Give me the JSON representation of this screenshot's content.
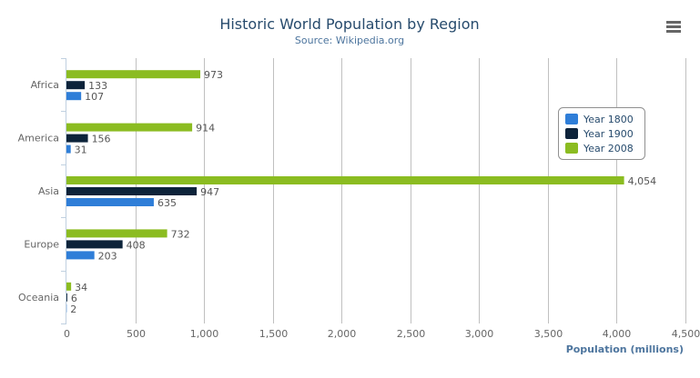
{
  "chart_data": {
    "type": "bar",
    "orientation": "horizontal",
    "title": "Historic World Population by Region",
    "subtitle": "Source: Wikipedia.org",
    "xlabel": "Population (millions)",
    "ylabel": "",
    "categories": [
      "Africa",
      "America",
      "Asia",
      "Europe",
      "Oceania"
    ],
    "series": [
      {
        "name": "Year 1800",
        "color": "#2f7ed8",
        "values": [
          107,
          31,
          635,
          203,
          2
        ]
      },
      {
        "name": "Year 1900",
        "color": "#0d233a",
        "values": [
          133,
          156,
          947,
          408,
          6
        ]
      },
      {
        "name": "Year 2008",
        "color": "#8bbc21",
        "values": [
          973,
          914,
          4054,
          732,
          34
        ]
      }
    ],
    "xlim": [
      0,
      4500
    ],
    "ticks": [
      "0",
      "500",
      "1,000",
      "1,500",
      "2,000",
      "2,500",
      "3,000",
      "3,500",
      "4,000",
      "4,500"
    ],
    "tick_values": [
      0,
      500,
      1000,
      1500,
      2000,
      2500,
      3000,
      3500,
      4000,
      4500
    ],
    "grid": true,
    "data_labels": true,
    "legend": {
      "position": "right",
      "items": [
        "Year 1800",
        "Year 1900",
        "Year 2008"
      ]
    }
  },
  "menu": {
    "icon": "hamburger-menu-icon"
  }
}
